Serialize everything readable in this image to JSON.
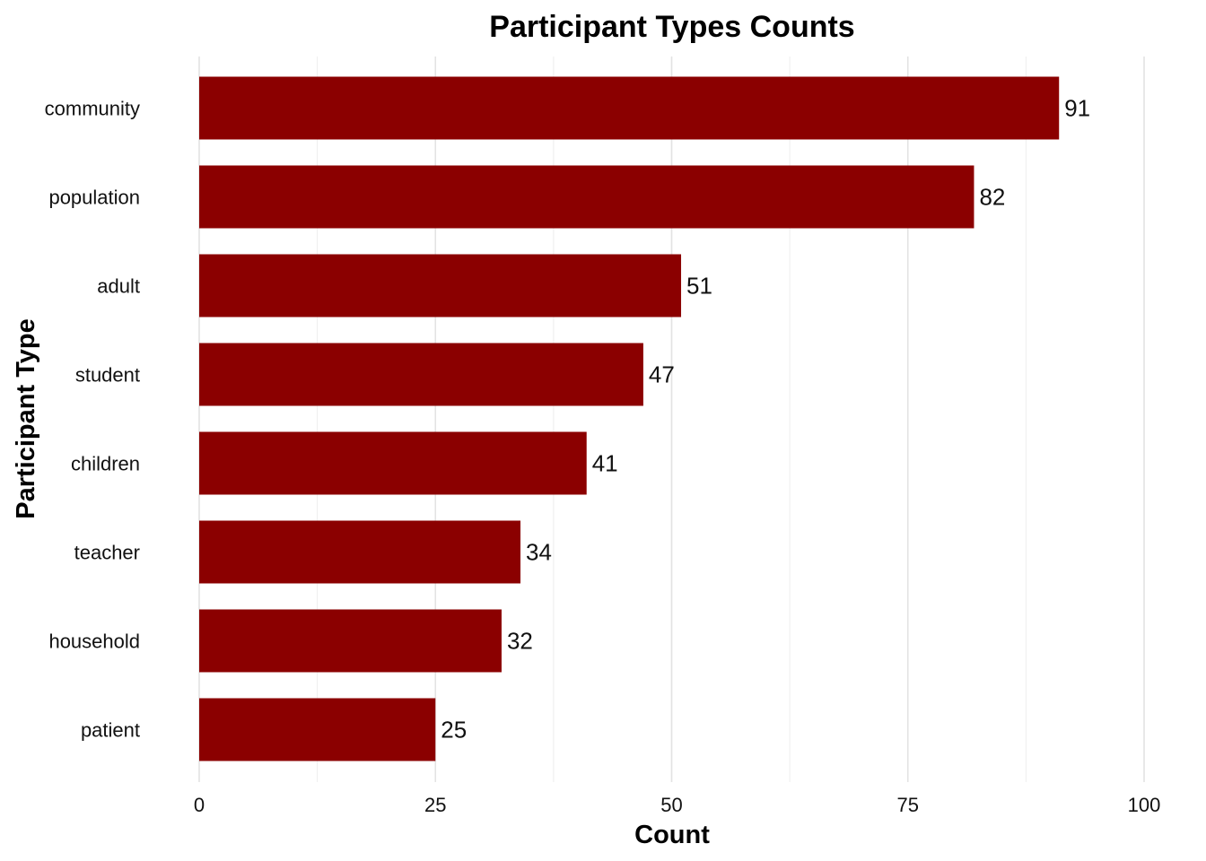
{
  "chart_data": {
    "type": "bar",
    "orientation": "horizontal",
    "title": "Participant Types Counts",
    "xlabel": "Count",
    "ylabel": "Participant Type",
    "categories": [
      "community",
      "population",
      "adult",
      "student",
      "children",
      "teacher",
      "household",
      "patient"
    ],
    "values": [
      91,
      82,
      51,
      47,
      41,
      34,
      32,
      25
    ],
    "xlim": [
      0,
      100
    ],
    "x_ticks": [
      0,
      25,
      50,
      75,
      100
    ],
    "grid": true,
    "legend": "none",
    "bar_color": "#8B0000"
  }
}
